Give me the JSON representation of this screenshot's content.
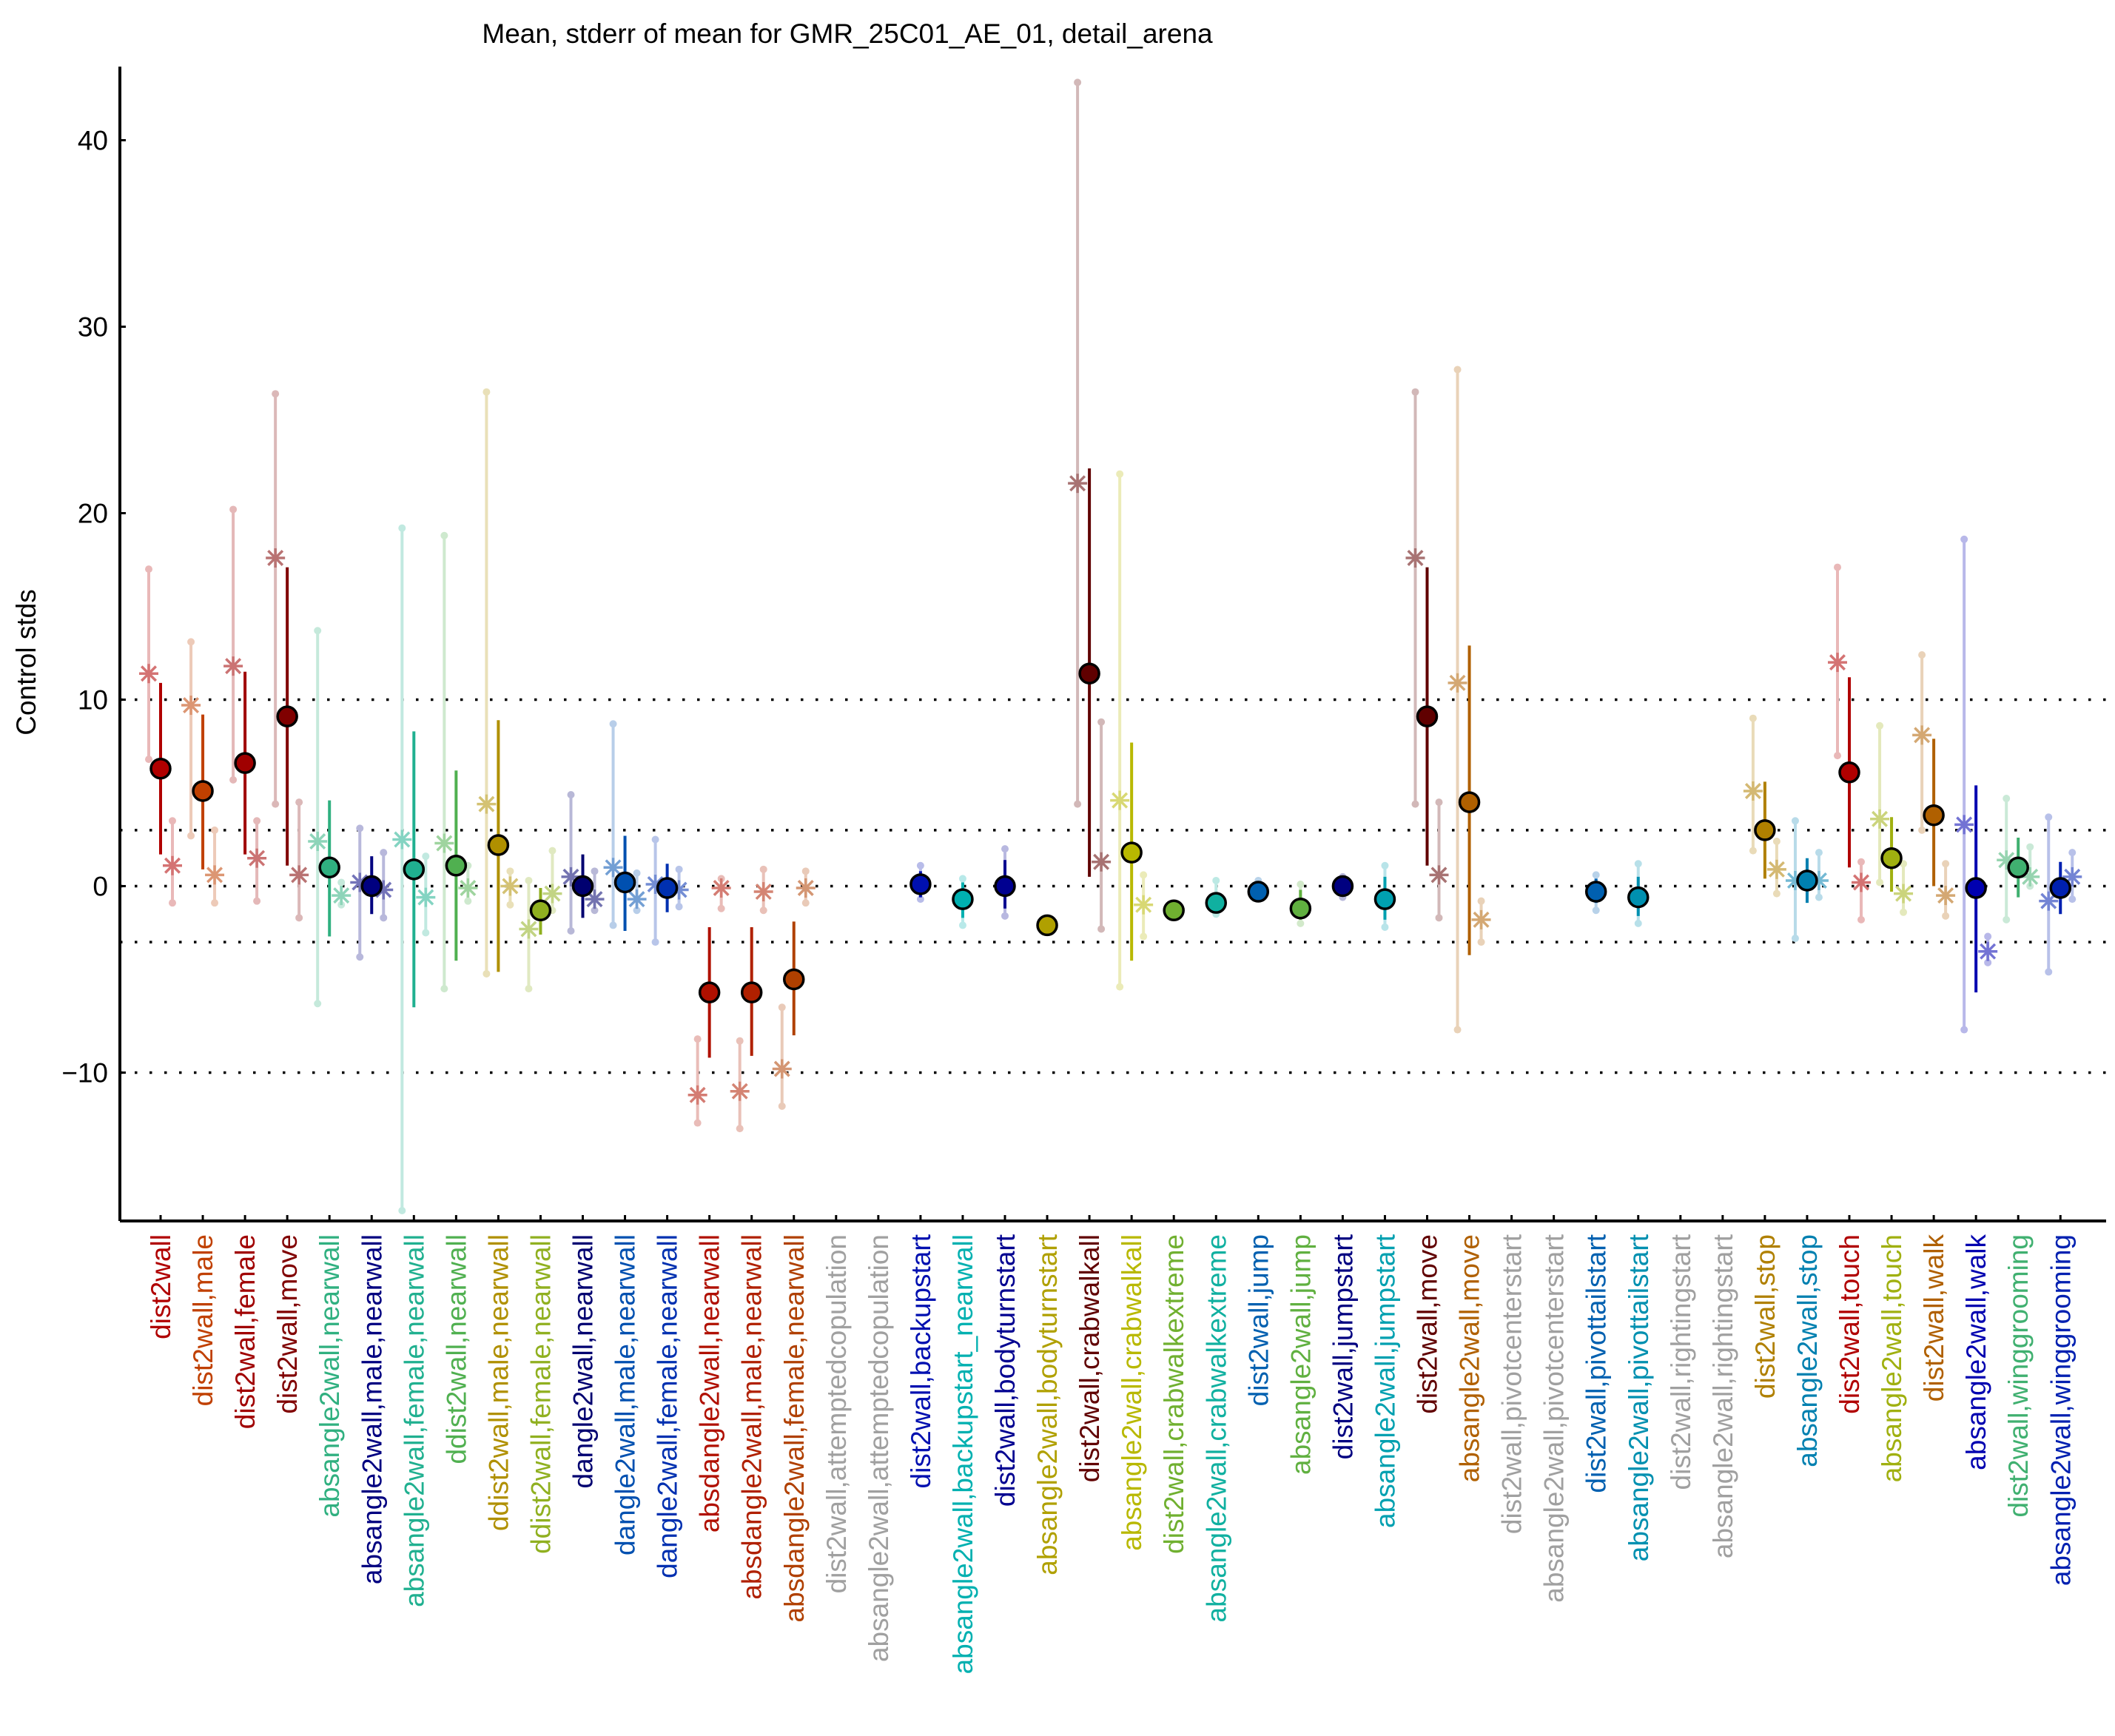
{
  "chart_data": {
    "type": "scatter",
    "title": "Mean, stderr of mean for GMR_25C01_AE_01, detail_arena",
    "xlabel": "",
    "ylabel": "Control stds",
    "ylim": [
      -18,
      44
    ],
    "yticks": [
      -10,
      0,
      10,
      20,
      30,
      40
    ],
    "ytick_labels": [
      "−10",
      "0",
      "10",
      "20",
      "30",
      "40"
    ],
    "reference_lines": [
      -10,
      -3,
      0,
      3,
      10
    ],
    "grid": false,
    "legend": "none",
    "markers": {
      "mean": "filled circle with stderr bar",
      "male": "asterisk (left of mean) with faint range bar",
      "female": "asterisk (right of mean) with faint range bar"
    },
    "categories": [
      {
        "label": "dist2wall",
        "color": "#b00000",
        "mean": 6.3,
        "err": [
          1.7,
          10.9
        ],
        "male": {
          "v": 11.4,
          "r": [
            6.8,
            17.0
          ]
        },
        "female": {
          "v": 1.1,
          "r": [
            -0.9,
            3.5
          ]
        }
      },
      {
        "label": "dist2wall,male",
        "color": "#c04000",
        "mean": 5.1,
        "err": [
          0.9,
          9.2
        ],
        "male": {
          "v": 9.7,
          "r": [
            2.7,
            13.1
          ]
        },
        "female": {
          "v": 0.6,
          "r": [
            -0.9,
            3.0
          ]
        }
      },
      {
        "label": "dist2wall,female",
        "color": "#a00000",
        "mean": 6.6,
        "err": [
          1.7,
          11.5
        ],
        "male": {
          "v": 11.8,
          "r": [
            5.7,
            20.2
          ]
        },
        "female": {
          "v": 1.5,
          "r": [
            -0.8,
            3.5
          ]
        }
      },
      {
        "label": "dist2wall,move",
        "color": "#800000",
        "mean": 9.1,
        "err": [
          1.1,
          17.1
        ],
        "male": {
          "v": 17.6,
          "r": [
            4.4,
            26.4
          ]
        },
        "female": {
          "v": 0.6,
          "r": [
            -1.7,
            4.5
          ]
        }
      },
      {
        "label": "absangle2wall,nearwall",
        "color": "#30b080",
        "mean": 1.0,
        "err": [
          -2.7,
          4.6
        ],
        "male": {
          "v": 2.4,
          "r": [
            -6.3,
            13.7
          ]
        },
        "female": {
          "v": -0.5,
          "r": [
            -1.0,
            0.2
          ]
        }
      },
      {
        "label": "absangle2wall,male,nearwall",
        "color": "#000080",
        "mean": 0.0,
        "err": [
          -1.5,
          1.6
        ],
        "male": {
          "v": 0.2,
          "r": [
            -3.8,
            3.1
          ]
        },
        "female": {
          "v": -0.2,
          "r": [
            -1.7,
            1.8
          ]
        }
      },
      {
        "label": "absangle2wall,female,nearwall",
        "color": "#20b090",
        "mean": 0.9,
        "err": [
          -6.5,
          8.3
        ],
        "male": {
          "v": 2.5,
          "r": [
            -17.4,
            19.2
          ]
        },
        "female": {
          "v": -0.6,
          "r": [
            -2.5,
            1.6
          ]
        }
      },
      {
        "label": "ddist2wall,nearwall",
        "color": "#50b050",
        "mean": 1.1,
        "err": [
          -4.0,
          6.2
        ],
        "male": {
          "v": 2.3,
          "r": [
            -5.5,
            18.8
          ]
        },
        "female": {
          "v": -0.1,
          "r": [
            -0.8,
            1.1
          ]
        }
      },
      {
        "label": "ddist2wall,male,nearwall",
        "color": "#b09000",
        "mean": 2.2,
        "err": [
          -4.6,
          8.9
        ],
        "male": {
          "v": 4.4,
          "r": [
            -4.7,
            26.5
          ]
        },
        "female": {
          "v": 0.0,
          "r": [
            -1.0,
            0.8
          ]
        }
      },
      {
        "label": "ddist2wall,female,nearwall",
        "color": "#90b020",
        "mean": -1.3,
        "err": [
          -2.6,
          -0.1
        ],
        "male": {
          "v": -2.3,
          "r": [
            -5.5,
            0.3
          ]
        },
        "female": {
          "v": -0.4,
          "r": [
            -1.3,
            1.9
          ]
        }
      },
      {
        "label": "dangle2wall,nearwall",
        "color": "#000070",
        "mean": 0.0,
        "err": [
          -1.7,
          1.7
        ],
        "male": {
          "v": 0.5,
          "r": [
            -2.4,
            4.9
          ]
        },
        "female": {
          "v": -0.7,
          "r": [
            -1.3,
            0.8
          ]
        }
      },
      {
        "label": "dangle2wall,male,nearwall",
        "color": "#0050b0",
        "mean": 0.2,
        "err": [
          -2.4,
          2.7
        ],
        "male": {
          "v": 1.0,
          "r": [
            -2.1,
            8.7
          ]
        },
        "female": {
          "v": -0.7,
          "r": [
            -1.3,
            0.7
          ]
        }
      },
      {
        "label": "dangle2wall,female,nearwall",
        "color": "#0030b0",
        "mean": -0.1,
        "err": [
          -1.4,
          1.2
        ],
        "male": {
          "v": 0.1,
          "r": [
            -3.0,
            2.5
          ]
        },
        "female": {
          "v": -0.2,
          "r": [
            -1.1,
            0.9
          ]
        }
      },
      {
        "label": "absdangle2wall,nearwall",
        "color": "#b01000",
        "mean": -5.7,
        "err": [
          -9.2,
          -2.2
        ],
        "male": {
          "v": -11.2,
          "r": [
            -12.7,
            -8.2
          ]
        },
        "female": {
          "v": -0.1,
          "r": [
            -1.2,
            0.4
          ]
        }
      },
      {
        "label": "absdangle2wall,male,nearwall",
        "color": "#b02000",
        "mean": -5.7,
        "err": [
          -9.1,
          -2.2
        ],
        "male": {
          "v": -11.0,
          "r": [
            -13.0,
            -8.3
          ]
        },
        "female": {
          "v": -0.3,
          "r": [
            -1.3,
            0.9
          ]
        }
      },
      {
        "label": "absdangle2wall,female,nearwall",
        "color": "#b04000",
        "mean": -5.0,
        "err": [
          -8.0,
          -1.9
        ],
        "male": {
          "v": -9.8,
          "r": [
            -11.8,
            -6.5
          ]
        },
        "female": {
          "v": -0.1,
          "r": [
            -0.9,
            0.8
          ]
        }
      },
      {
        "label": "dist2wall,attemptedcopulation",
        "color": "#a0a0a0",
        "mean": null
      },
      {
        "label": "absangle2wall,attemptedcopulation",
        "color": "#a0a0a0",
        "mean": null
      },
      {
        "label": "dist2wall,backupstart",
        "color": "#0010b0",
        "mean": 0.1,
        "err": [
          -0.6,
          0.8
        ],
        "male": null,
        "female": null,
        "faint": [
          -0.7,
          1.1
        ]
      },
      {
        "label": "absangle2wall,backupstart_nearwall",
        "color": "#00b0b0",
        "mean": -0.7,
        "err": [
          -1.7,
          0.2
        ],
        "male": null,
        "female": null,
        "faint": [
          -2.1,
          0.4
        ]
      },
      {
        "label": "dist2wall,bodyturnstart",
        "color": "#000090",
        "mean": 0.0,
        "err": [
          -1.2,
          1.4
        ],
        "male": null,
        "female": null,
        "faint": [
          -1.6,
          2.0
        ]
      },
      {
        "label": "absangle2wall,bodyturnstart",
        "color": "#b0a000",
        "mean": -2.1,
        "err": [
          -2.1,
          -2.1
        ],
        "male": null,
        "female": null
      },
      {
        "label": "dist2wall,crabwalkall",
        "color": "#600000",
        "mean": 11.4,
        "err": [
          0.5,
          22.4
        ],
        "male": {
          "v": 21.6,
          "r": [
            4.4,
            43.1
          ]
        },
        "female": {
          "v": 1.3,
          "r": [
            -2.3,
            8.8
          ]
        }
      },
      {
        "label": "absangle2wall,crabwalkall",
        "color": "#b8b800",
        "mean": 1.8,
        "err": [
          -4.0,
          7.7
        ],
        "male": {
          "v": 4.6,
          "r": [
            -5.4,
            22.1
          ]
        },
        "female": {
          "v": -1.0,
          "r": [
            -2.7,
            0.6
          ]
        }
      },
      {
        "label": "dist2wall,crabwalkextreme",
        "color": "#70b030",
        "mean": -1.3,
        "err": [
          -1.3,
          -1.3
        ],
        "male": null,
        "female": null
      },
      {
        "label": "absangle2wall,crabwalkextreme",
        "color": "#10b0a0",
        "mean": -0.9,
        "err": [
          -1.3,
          -0.5
        ],
        "male": null,
        "female": null,
        "faint": [
          -1.5,
          0.3
        ]
      },
      {
        "label": "dist2wall,jump",
        "color": "#0060b0",
        "mean": -0.3,
        "err": [
          -0.6,
          0.1
        ],
        "male": null,
        "female": null,
        "faint": [
          -0.6,
          0.3
        ]
      },
      {
        "label": "absangle2wall,jump",
        "color": "#60b040",
        "mean": -1.2,
        "err": [
          -1.8,
          -0.2
        ],
        "male": null,
        "female": null,
        "faint": [
          -2.0,
          0.1
        ]
      },
      {
        "label": "dist2wall,jumpstart",
        "color": "#000080",
        "mean": 0.0,
        "err": [
          -0.4,
          0.4
        ],
        "male": null,
        "female": null,
        "faint": [
          -0.6,
          0.5
        ]
      },
      {
        "label": "absangle2wall,jumpstart",
        "color": "#00a0b0",
        "mean": -0.7,
        "err": [
          -1.8,
          0.5
        ],
        "male": null,
        "female": null,
        "faint": [
          -2.2,
          1.1
        ]
      },
      {
        "label": "dist2wall,move",
        "color": "#600000",
        "mean": 9.1,
        "err": [
          1.1,
          17.1
        ],
        "male": {
          "v": 17.6,
          "r": [
            4.4,
            26.5
          ]
        },
        "female": {
          "v": 0.6,
          "r": [
            -1.7,
            4.5
          ]
        }
      },
      {
        "label": "absangle2wall,move",
        "color": "#b06000",
        "mean": 4.5,
        "err": [
          -3.7,
          12.9
        ],
        "male": {
          "v": 10.9,
          "r": [
            -7.7,
            27.7
          ]
        },
        "female": {
          "v": -1.8,
          "r": [
            -3.0,
            -0.8
          ]
        }
      },
      {
        "label": "dist2wall,pivotcenterstart",
        "color": "#a0a0a0",
        "mean": null
      },
      {
        "label": "absangle2wall,pivotcenterstart",
        "color": "#a0a0a0",
        "mean": null
      },
      {
        "label": "dist2wall,pivottailstart",
        "color": "#0060b0",
        "mean": -0.3,
        "err": [
          -0.9,
          0.4
        ],
        "male": null,
        "female": null,
        "faint": [
          -1.3,
          0.6
        ]
      },
      {
        "label": "absangle2wall,pivottailstart",
        "color": "#0090b0",
        "mean": -0.6,
        "err": [
          -1.6,
          0.5
        ],
        "male": null,
        "female": null,
        "faint": [
          -2.0,
          1.2
        ]
      },
      {
        "label": "dist2wall,rightingstart",
        "color": "#a0a0a0",
        "mean": null
      },
      {
        "label": "absangle2wall,rightingstart",
        "color": "#a0a0a0",
        "mean": null
      },
      {
        "label": "dist2wall,stop",
        "color": "#b08000",
        "mean": 3.0,
        "err": [
          0.4,
          5.6
        ],
        "male": {
          "v": 5.1,
          "r": [
            1.9,
            9.0
          ]
        },
        "female": {
          "v": 0.9,
          "r": [
            -0.4,
            2.4
          ]
        }
      },
      {
        "label": "absangle2wall,stop",
        "color": "#0080b0",
        "mean": 0.3,
        "err": [
          -0.9,
          1.5
        ],
        "male": {
          "v": 0.3,
          "r": [
            -2.8,
            3.5
          ]
        },
        "female": {
          "v": 0.3,
          "r": [
            -0.6,
            1.8
          ]
        }
      },
      {
        "label": "dist2wall,touch",
        "color": "#b00000",
        "mean": 6.1,
        "err": [
          1.0,
          11.2
        ],
        "male": {
          "v": 12.0,
          "r": [
            7.0,
            17.1
          ]
        },
        "female": {
          "v": 0.2,
          "r": [
            -1.8,
            1.3
          ]
        }
      },
      {
        "label": "absangle2wall,touch",
        "color": "#a0b010",
        "mean": 1.5,
        "err": [
          -0.3,
          3.7
        ],
        "male": {
          "v": 3.6,
          "r": [
            0.2,
            8.6
          ]
        },
        "female": {
          "v": -0.4,
          "r": [
            -1.4,
            1.2
          ]
        }
      },
      {
        "label": "dist2wall,walk",
        "color": "#b06000",
        "mean": 3.8,
        "err": [
          0.0,
          7.9
        ],
        "male": {
          "v": 8.1,
          "r": [
            3.0,
            12.4
          ]
        },
        "female": {
          "v": -0.5,
          "r": [
            -1.6,
            1.2
          ]
        }
      },
      {
        "label": "absangle2wall,walk",
        "color": "#0000b0",
        "mean": -0.1,
        "err": [
          -5.7,
          5.4
        ],
        "male": {
          "v": 3.3,
          "r": [
            -7.7,
            18.6
          ]
        },
        "female": {
          "v": -3.5,
          "r": [
            -4.1,
            -2.7
          ]
        }
      },
      {
        "label": "dist2wall,winggrooming",
        "color": "#40b070",
        "mean": 1.0,
        "err": [
          -0.6,
          2.6
        ],
        "male": {
          "v": 1.4,
          "r": [
            -1.8,
            4.7
          ]
        },
        "female": {
          "v": 0.5,
          "r": [
            0.0,
            2.1
          ]
        }
      },
      {
        "label": "absangle2wall,winggrooming",
        "color": "#0020b0",
        "mean": -0.1,
        "err": [
          -1.5,
          1.3
        ],
        "male": {
          "v": -0.8,
          "r": [
            -4.6,
            3.7
          ]
        },
        "female": {
          "v": 0.5,
          "r": [
            -0.7,
            1.8
          ]
        }
      }
    ]
  }
}
